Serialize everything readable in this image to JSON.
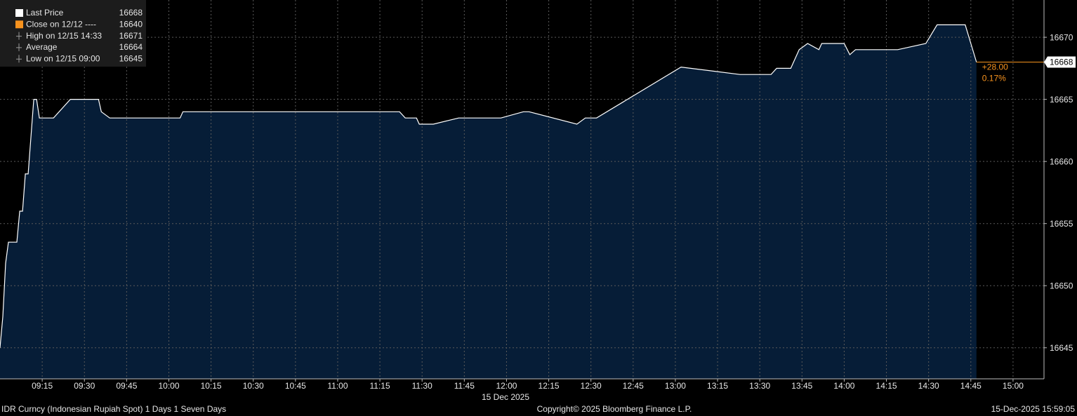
{
  "chart_data": {
    "type": "area",
    "x": [
      "09:00",
      "09:01",
      "09:02",
      "09:03",
      "09:06",
      "09:07",
      "09:08",
      "09:09",
      "09:10",
      "09:12",
      "09:13",
      "09:14",
      "09:19",
      "09:25",
      "09:35",
      "09:36",
      "09:39",
      "10:04",
      "10:05",
      "11:22",
      "11:24",
      "11:28",
      "11:29",
      "11:34",
      "11:43",
      "11:58",
      "12:06",
      "12:08",
      "12:25",
      "12:28",
      "12:32",
      "13:02",
      "13:23",
      "13:34",
      "13:36",
      "13:41",
      "13:44",
      "13:47",
      "13:51",
      "13:52",
      "14:00",
      "14:02",
      "14:04",
      "14:19",
      "14:29",
      "14:33",
      "14:43",
      "14:45",
      "14:47"
    ],
    "series": [
      {
        "name": "Last Price",
        "color": "#ffffff",
        "fill": "#061d37",
        "values": [
          16645,
          16647.5,
          16651.8,
          16653.5,
          16653.5,
          16656,
          16656,
          16659,
          16659,
          16665,
          16665,
          16663.5,
          16663.5,
          16665,
          16665,
          16664,
          16663.5,
          16663.5,
          16664,
          16664,
          16663.5,
          16663.5,
          16663,
          16663,
          16663.5,
          16663.5,
          16664,
          16664,
          16663,
          16663.5,
          16663.5,
          16667.6,
          16667,
          16667,
          16667.5,
          16667.5,
          16669,
          16669.5,
          16669,
          16669.5,
          16669.5,
          16668.6,
          16669,
          16669,
          16669.5,
          16671,
          16671,
          16669.5,
          16668
        ]
      }
    ],
    "legend_entries": [
      {
        "label": "Last Price",
        "value": 16668,
        "color": "#ffffff"
      },
      {
        "label": "Close on 12/12 ----",
        "value": 16640,
        "color": "#f7931e"
      },
      {
        "label": "High on 12/15 14:33",
        "value": 16671
      },
      {
        "label": "Average",
        "value": 16664
      },
      {
        "label": "Low on 12/15 09:00",
        "value": 16645
      }
    ],
    "last_value": 16668,
    "change": "+28.00",
    "change_pct": "0.17%",
    "change_color": "#f7931e",
    "xlim": [
      "09:00",
      "15:11"
    ],
    "xticks": [
      "09:15",
      "09:30",
      "09:45",
      "10:00",
      "10:15",
      "10:30",
      "10:45",
      "11:00",
      "11:15",
      "11:30",
      "11:45",
      "12:00",
      "12:15",
      "12:30",
      "12:45",
      "13:00",
      "13:15",
      "13:30",
      "13:45",
      "14:00",
      "14:15",
      "14:30",
      "14:45",
      "15:00"
    ],
    "x_label": "15 Dec 2025",
    "ylim": [
      16642.5,
      16673
    ],
    "yticks": [
      16645,
      16650,
      16655,
      16660,
      16665,
      16670
    ],
    "grid": true
  },
  "footer": {
    "left": "IDR Curncy (Indonesian Rupiah Spot) 1 Days 1 Seven Days",
    "center": "Copyright© 2025 Bloomberg Finance L.P.",
    "right": "15-Dec-2025 15:59:05"
  }
}
